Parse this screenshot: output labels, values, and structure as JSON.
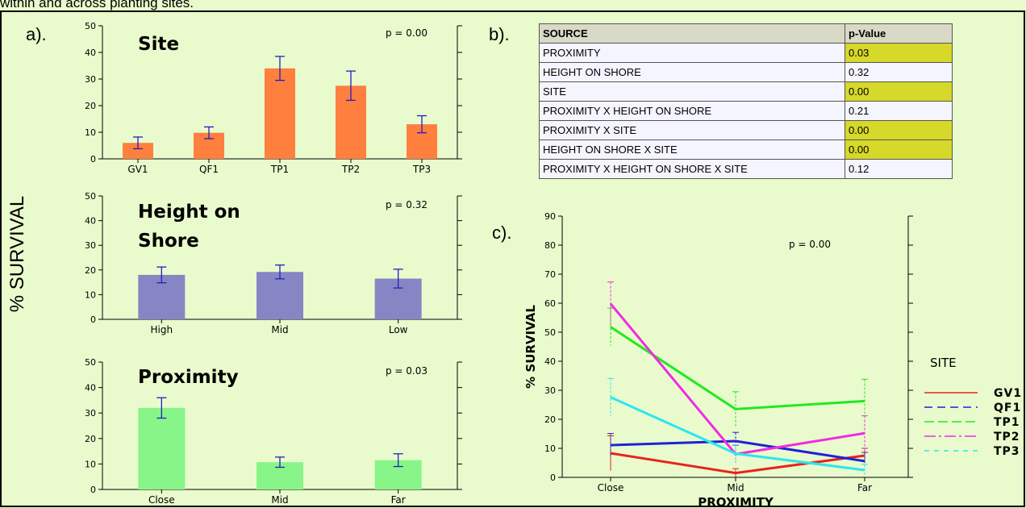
{
  "caption": "within and across planting sites.",
  "panel_labels": {
    "a": "a).",
    "b": "b).",
    "c": "c)."
  },
  "y_axis_main_label": "% SURVIVAL",
  "table": {
    "headers": [
      "SOURCE",
      "p-Value"
    ],
    "rows": [
      {
        "source": "PROXIMITY",
        "p": "0.03",
        "significant": true
      },
      {
        "source": "HEIGHT ON SHORE",
        "p": "0.32",
        "significant": false
      },
      {
        "source": "SITE",
        "p": "0.00",
        "significant": true
      },
      {
        "source": "PROXIMITY X HEIGHT ON SHORE",
        "p": "0.21",
        "significant": false
      },
      {
        "source": "PROXIMITY X SITE",
        "p": "0.00",
        "significant": true
      },
      {
        "source": "HEIGHT ON SHORE X SITE",
        "p": "0.00",
        "significant": true
      },
      {
        "source": "PROXIMITY X HEIGHT ON SHORE X SITE",
        "p": "0.12",
        "significant": false
      }
    ],
    "highlight_color": "#d6d82a"
  },
  "chart_data": [
    {
      "type": "bar",
      "title": "Site",
      "annotation": "p = 0.00",
      "categories": [
        "GV1",
        "QF1",
        "TP1",
        "TP2",
        "TP3"
      ],
      "values": [
        6,
        9.8,
        34,
        27.5,
        13
      ],
      "errors": [
        2.2,
        2.2,
        4.5,
        5.5,
        3.2
      ],
      "ylim": [
        0,
        50
      ],
      "yticks": [
        "0",
        "10",
        "20",
        "30",
        "40",
        "50"
      ],
      "bar_color": "#ff7f3f"
    },
    {
      "type": "bar",
      "title": "Height on Shore",
      "annotation": "p = 0.32",
      "categories": [
        "High",
        "Mid",
        "Low"
      ],
      "values": [
        18,
        19.2,
        16.5
      ],
      "errors": [
        3.2,
        2.8,
        3.8
      ],
      "ylim": [
        0,
        50
      ],
      "yticks": [
        "0",
        "10",
        "20",
        "30",
        "40",
        "50"
      ],
      "bar_color": "#8686c4"
    },
    {
      "type": "bar",
      "title": "Proximity",
      "annotation": "p = 0.03",
      "categories": [
        "Close",
        "Mid",
        "Far"
      ],
      "values": [
        32,
        10.7,
        11.5
      ],
      "errors": [
        4,
        2,
        2.5
      ],
      "ylim": [
        0,
        50
      ],
      "yticks": [
        "0",
        "10",
        "20",
        "30",
        "40",
        "50"
      ],
      "bar_color": "#88f588"
    },
    {
      "type": "line",
      "annotation": "p = 0.00",
      "xlabel": "PROXIMITY",
      "ylabel": "% SURVIVAL",
      "categories": [
        "Close",
        "Mid",
        "Far"
      ],
      "ylim": [
        0,
        90
      ],
      "yticks": [
        "0",
        "10",
        "20",
        "30",
        "40",
        "50",
        "60",
        "70",
        "80",
        "90"
      ],
      "legend_title": "SITE",
      "series": [
        {
          "name": "GV1",
          "values": [
            8.3,
            1.5,
            7.5
          ],
          "errors": [
            6,
            1.5,
            2.5
          ],
          "color": "#e8231e",
          "dash": ""
        },
        {
          "name": "QF1",
          "values": [
            11.1,
            12.5,
            5.6
          ],
          "errors": [
            4,
            3,
            3
          ],
          "color": "#1e22d8",
          "dash": "10,6"
        },
        {
          "name": "TP1",
          "values": [
            51.8,
            23.5,
            26.3
          ],
          "errors": [
            6.5,
            6,
            7.5
          ],
          "color": "#22e822",
          "dash": "12,5"
        },
        {
          "name": "TP2",
          "values": [
            59.8,
            8,
            15.2
          ],
          "errors": [
            7.5,
            3,
            6
          ],
          "color": "#ef2ce3",
          "dash": "14,4,3,4"
        },
        {
          "name": "TP3",
          "values": [
            27.6,
            8.2,
            2.5
          ],
          "errors": [
            6.5,
            3,
            2
          ],
          "color": "#2ee6ee",
          "dash": "6,6"
        }
      ]
    }
  ]
}
